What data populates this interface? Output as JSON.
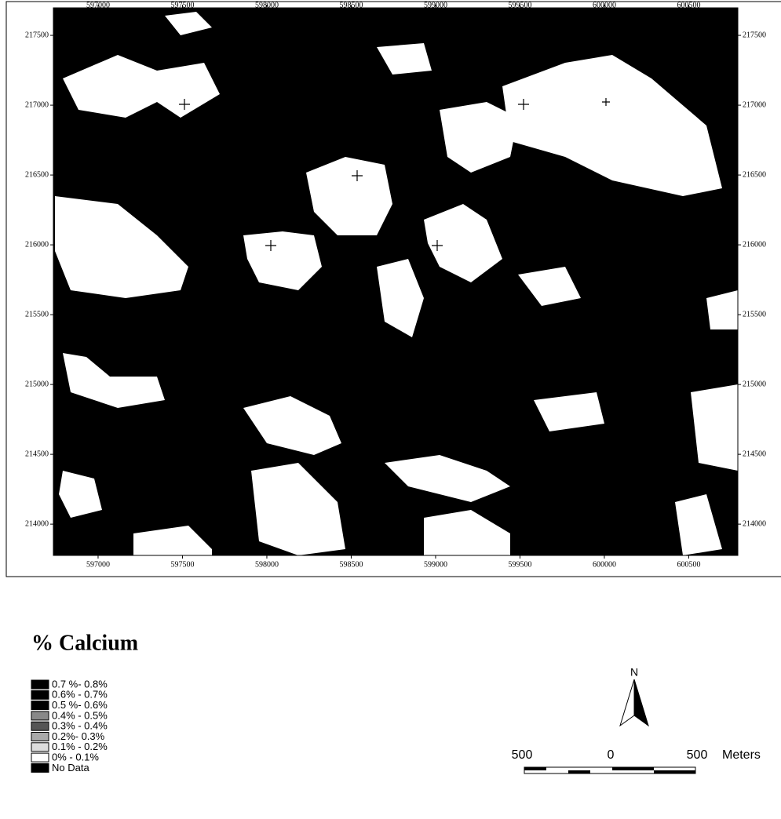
{
  "map": {
    "xlim": [
      596735,
      600791
    ],
    "ylim": [
      213776,
      217697
    ],
    "xticks": [
      597000,
      597500,
      598000,
      598500,
      599000,
      599500,
      600000,
      600500
    ],
    "yticks": [
      217500,
      217000,
      216500,
      216000,
      215500,
      215000,
      214500,
      214000
    ]
  },
  "legend": {
    "title": "% Calcium",
    "items": [
      "0.7 %- 0.8%",
      "0.6% - 0.7%",
      "0.5 %- 0.6%",
      "0.4% - 0.5%",
      "0.3% - 0.4%",
      "0.2%- 0.3%",
      "0.1% - 0.2%",
      "0% - 0.1%",
      "No Data"
    ]
  },
  "north_arrow": {
    "label": "N"
  },
  "scale_bar": {
    "labels": [
      "500",
      "0",
      "500"
    ],
    "unit": "Meters"
  }
}
